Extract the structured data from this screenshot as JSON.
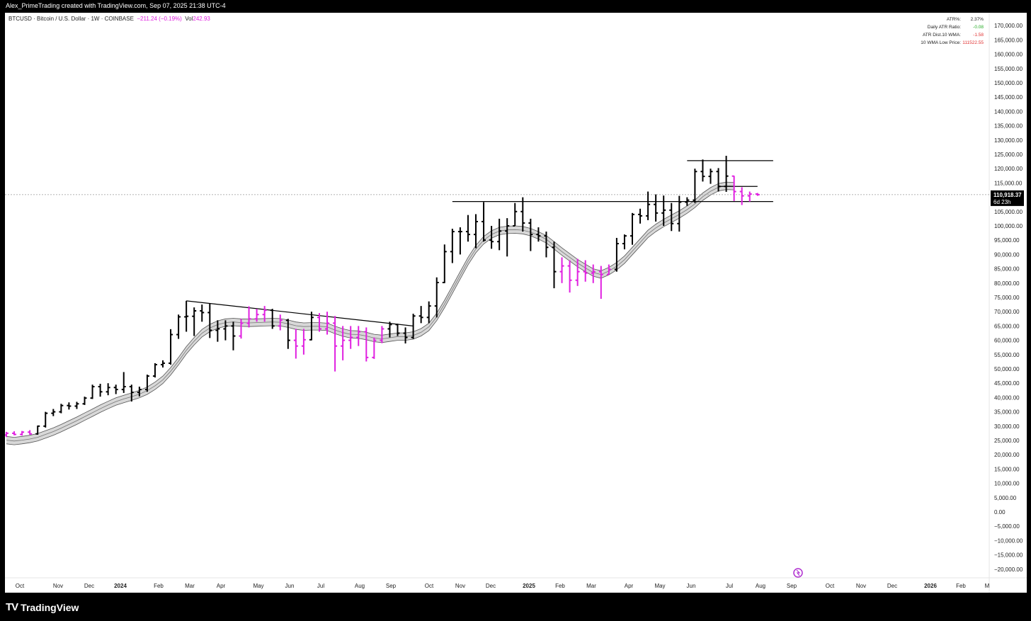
{
  "header": {
    "caption": "Alex_PrimeTrading created with TradingView.com, Sep 07, 2025 21:38 UTC-4"
  },
  "legend": {
    "symbol": "BTCUSD · Bitcoin / U.S. Dollar · 1W · COINBASE",
    "change": "−211.24 (−0.19%)",
    "volume_label": "Vol",
    "volume_value": "242.93"
  },
  "stats_table": [
    {
      "label": "ATR%:",
      "value": "2.37%",
      "color": "#222222"
    },
    {
      "label": "Daily ATR Ratio:",
      "value": "-0.08",
      "color": "#22aa22"
    },
    {
      "label": "ATR Dist.10 WMA:",
      "value": "-1.58",
      "color": "#e03030"
    },
    {
      "label": "10 WMA Low Price:",
      "value": "111522.55",
      "color": "#e03030"
    }
  ],
  "price_tag": {
    "price": "110,918.37",
    "countdown": "6d 23h"
  },
  "footer": {
    "brand": "TradingView",
    "logo_text": "TV"
  },
  "colors": {
    "up_bar": "#000000",
    "down_bar": "#e020e0",
    "band_fill": "#d8d8d8",
    "band_edge": "#555555",
    "ma_line": "#e060e0"
  },
  "chart_data": {
    "type": "ohlc_bar",
    "symbol": "BTCUSD",
    "timeframe": "1W",
    "y_axis": {
      "min": -20000,
      "max": 170000,
      "step": 5000,
      "tick_labels": [
        "170,000.00",
        "165,000.00",
        "160,000.00",
        "155,000.00",
        "150,000.00",
        "145,000.00",
        "140,000.00",
        "135,000.00",
        "130,000.00",
        "125,000.00",
        "120,000.00",
        "115,000.00",
        "110,000.00",
        "105,000.00",
        "100,000.00",
        "95,000.00",
        "90,000.00",
        "85,000.00",
        "80,000.00",
        "75,000.00",
        "70,000.00",
        "65,000.00",
        "60,000.00",
        "55,000.00",
        "50,000.00",
        "45,000.00",
        "40,000.00",
        "35,000.00",
        "30,000.00",
        "25,000.00",
        "20,000.00",
        "15,000.00",
        "10,000.00",
        "5,000.00",
        "0.00",
        "−5,000.00",
        "−10,000.00",
        "−15,000.00",
        "−20,000.00"
      ]
    },
    "x_axis": {
      "tick_labels": [
        "Oct",
        "Nov",
        "Dec",
        "2024",
        "Feb",
        "Mar",
        "Apr",
        "May",
        "Jun",
        "Jul",
        "Aug",
        "Sep",
        "Oct",
        "Nov",
        "Dec",
        "2025",
        "Feb",
        "Mar",
        "Apr",
        "May",
        "Jun",
        "Jul",
        "Aug",
        "Sep",
        "Oct",
        "Nov",
        "Dec",
        "2026",
        "Feb",
        "M"
      ],
      "bold_labels": [
        "2024",
        "2025",
        "2026"
      ]
    },
    "bars": [
      [
        26900,
        28000,
        26200,
        27500,
        0
      ],
      [
        27500,
        28200,
        26800,
        27100,
        0
      ],
      [
        27100,
        28300,
        26700,
        27900,
        0
      ],
      [
        27900,
        28600,
        27000,
        27300,
        0
      ],
      [
        27300,
        30200,
        27000,
        30000,
        1
      ],
      [
        30000,
        35000,
        29500,
        34500,
        1
      ],
      [
        34500,
        36000,
        33500,
        35000,
        1
      ],
      [
        35000,
        37800,
        34500,
        37200,
        1
      ],
      [
        37200,
        38300,
        35800,
        37000,
        1
      ],
      [
        37000,
        38500,
        36000,
        37800,
        1
      ],
      [
        37800,
        40300,
        37400,
        39800,
        1
      ],
      [
        39800,
        44500,
        39500,
        43800,
        1
      ],
      [
        43800,
        44800,
        40300,
        42000,
        1
      ],
      [
        42000,
        45000,
        40800,
        43500,
        1
      ],
      [
        43500,
        44500,
        41200,
        42800,
        1
      ],
      [
        42800,
        48900,
        41600,
        43800,
        1
      ],
      [
        43800,
        44500,
        38600,
        41800,
        1
      ],
      [
        41800,
        43800,
        40400,
        42800,
        1
      ],
      [
        42800,
        48000,
        42000,
        47500,
        1
      ],
      [
        47500,
        52000,
        47000,
        51500,
        1
      ],
      [
        51500,
        53000,
        50500,
        52000,
        1
      ],
      [
        52000,
        63900,
        51500,
        62000,
        1
      ],
      [
        62000,
        69000,
        60500,
        68200,
        1
      ],
      [
        68200,
        73800,
        63000,
        68400,
        1
      ],
      [
        68400,
        71500,
        61500,
        70300,
        1
      ],
      [
        70300,
        72500,
        66500,
        69700,
        1
      ],
      [
        69700,
        72800,
        60800,
        63500,
        1
      ],
      [
        63500,
        67000,
        59500,
        64000,
        1
      ],
      [
        64000,
        67000,
        60000,
        65000,
        1
      ],
      [
        65000,
        66500,
        56500,
        61500,
        1
      ],
      [
        61500,
        67500,
        60600,
        66000,
        0
      ],
      [
        66000,
        71900,
        64500,
        67500,
        0
      ],
      [
        67500,
        71000,
        66500,
        69000,
        0
      ],
      [
        69000,
        72000,
        66500,
        70500,
        0
      ],
      [
        70500,
        71000,
        64000,
        65000,
        1
      ],
      [
        65000,
        69000,
        63500,
        67000,
        0
      ],
      [
        67000,
        67500,
        57000,
        60000,
        1
      ],
      [
        60000,
        64000,
        53600,
        58000,
        0
      ],
      [
        58000,
        64000,
        55000,
        60200,
        0
      ],
      [
        60200,
        70000,
        60000,
        68000,
        1
      ],
      [
        68000,
        69500,
        63000,
        64000,
        0
      ],
      [
        64000,
        70000,
        62000,
        66000,
        0
      ],
      [
        66000,
        68500,
        49100,
        58000,
        0
      ],
      [
        58000,
        65000,
        53000,
        60000,
        0
      ],
      [
        60000,
        65000,
        57000,
        61000,
        0
      ],
      [
        61000,
        65000,
        58000,
        63000,
        0
      ],
      [
        63000,
        64500,
        52600,
        54000,
        0
      ],
      [
        54000,
        61000,
        53500,
        60000,
        0
      ],
      [
        60000,
        65000,
        59000,
        64000,
        0
      ],
      [
        64000,
        66500,
        61000,
        65500,
        1
      ],
      [
        65500,
        65800,
        61500,
        62500,
        1
      ],
      [
        62500,
        64500,
        58900,
        61000,
        1
      ],
      [
        61000,
        69300,
        60500,
        68500,
        1
      ],
      [
        68500,
        72000,
        66000,
        68000,
        1
      ],
      [
        68000,
        73600,
        66000,
        72000,
        1
      ],
      [
        72000,
        82000,
        68000,
        80200,
        1
      ],
      [
        80200,
        93500,
        80000,
        91000,
        1
      ],
      [
        91000,
        99000,
        87000,
        98000,
        1
      ],
      [
        98000,
        99500,
        90000,
        98000,
        1
      ],
      [
        98000,
        103800,
        94500,
        97000,
        1
      ],
      [
        97000,
        104100,
        92200,
        101500,
        1
      ],
      [
        101500,
        108300,
        94500,
        95000,
        1
      ],
      [
        95000,
        100000,
        92000,
        94500,
        1
      ],
      [
        94500,
        102500,
        91500,
        98200,
        1
      ],
      [
        98200,
        102700,
        89300,
        100000,
        1
      ],
      [
        100000,
        108000,
        100000,
        105000,
        1
      ],
      [
        105000,
        110000,
        98000,
        101000,
        1
      ],
      [
        101000,
        102500,
        91200,
        97000,
        1
      ],
      [
        97000,
        99500,
        94500,
        96500,
        1
      ],
      [
        96500,
        98000,
        89000,
        92500,
        1
      ],
      [
        92500,
        94500,
        78200,
        84000,
        1
      ],
      [
        84000,
        89000,
        80000,
        86000,
        0
      ],
      [
        86000,
        88000,
        76700,
        81000,
        0
      ],
      [
        81000,
        88500,
        79000,
        84000,
        0
      ],
      [
        84000,
        88000,
        80500,
        83500,
        0
      ],
      [
        83500,
        86500,
        80000,
        84000,
        0
      ],
      [
        84000,
        86000,
        74500,
        83000,
        0
      ],
      [
        83000,
        86500,
        83000,
        84800,
        0
      ],
      [
        84800,
        95800,
        84000,
        93800,
        1
      ],
      [
        93800,
        97000,
        91800,
        96500,
        1
      ],
      [
        96500,
        104500,
        93400,
        104000,
        1
      ],
      [
        104000,
        106000,
        100800,
        103500,
        1
      ],
      [
        103500,
        112000,
        102000,
        107500,
        1
      ],
      [
        107500,
        111000,
        101500,
        104500,
        1
      ],
      [
        104500,
        110600,
        100000,
        105500,
        1
      ],
      [
        105500,
        108000,
        98200,
        100800,
        1
      ],
      [
        100800,
        110500,
        98000,
        108300,
        1
      ],
      [
        108300,
        110000,
        107000,
        109000,
        1
      ],
      [
        109000,
        120000,
        108000,
        119000,
        1
      ],
      [
        119000,
        123200,
        115500,
        117300,
        1
      ],
      [
        117300,
        120000,
        114700,
        119000,
        1
      ],
      [
        119000,
        120200,
        112000,
        113800,
        1
      ],
      [
        113800,
        124500,
        111900,
        117400,
        1
      ],
      [
        117400,
        117500,
        108700,
        112000,
        0
      ],
      [
        112000,
        113500,
        107300,
        110500,
        0
      ],
      [
        110500,
        112000,
        108500,
        111130,
        0
      ],
      [
        111130,
        111500,
        110500,
        110918,
        0
      ]
    ],
    "ma_band_upper": [
      26400,
      26100,
      26400,
      26800,
      27400,
      28400,
      29400,
      30600,
      31900,
      33200,
      34600,
      36000,
      37400,
      38700,
      39900,
      40800,
      41600,
      42500,
      43700,
      45400,
      47500,
      50500,
      54000,
      57800,
      61000,
      63800,
      65600,
      66800,
      67500,
      67700,
      67500,
      67400,
      67500,
      67600,
      67700,
      67600,
      67100,
      66400,
      66100,
      66200,
      66200,
      66000,
      64900,
      64000,
      63400,
      63300,
      62800,
      62100,
      61800,
      62200,
      62600,
      62600,
      63000,
      64100,
      66000,
      69500,
      74000,
      79000,
      84000,
      89000,
      93200,
      96300,
      98300,
      99500,
      99900,
      100000,
      99800,
      99100,
      98000,
      96600,
      94500,
      92300,
      90300,
      88300,
      86600,
      85000,
      84300,
      85500,
      87200,
      89500,
      92500,
      95500,
      98500,
      100600,
      102300,
      103800,
      105300,
      107000,
      109000,
      111500,
      113400,
      114800,
      115300,
      115200
    ],
    "ma_band_lower": [
      23800,
      23500,
      23800,
      24200,
      24800,
      25800,
      26800,
      28000,
      29300,
      30600,
      32000,
      33400,
      34800,
      36100,
      37300,
      38200,
      39000,
      39900,
      41100,
      42800,
      44900,
      47900,
      51400,
      55200,
      58400,
      61200,
      63000,
      64200,
      64900,
      65100,
      64900,
      64800,
      64900,
      65000,
      65100,
      65000,
      64500,
      63800,
      63500,
      63600,
      63600,
      63400,
      62300,
      61400,
      60800,
      60700,
      60200,
      59500,
      59200,
      59600,
      60000,
      60000,
      60400,
      61500,
      63400,
      66900,
      71400,
      76400,
      81400,
      86400,
      90600,
      93700,
      95700,
      96900,
      97300,
      97400,
      97200,
      96500,
      95400,
      94000,
      91900,
      89700,
      87700,
      85700,
      84000,
      82400,
      81700,
      82900,
      84600,
      86900,
      89900,
      92900,
      95900,
      98000,
      99700,
      101200,
      102700,
      104400,
      106400,
      108900,
      110800,
      112200,
      112700,
      112600
    ],
    "trendlines": [
      {
        "from_bar": 23,
        "to_bar": 52,
        "from_price": 73800,
        "to_price": 65000,
        "kind": "descending_resistance"
      },
      {
        "from_bar": 57,
        "to_bar": 98,
        "price": 108500,
        "kind": "horizontal"
      },
      {
        "from_bar": 87,
        "to_bar": 98,
        "price": 122800,
        "kind": "horizontal"
      },
      {
        "from_bar": 91,
        "to_bar": 96,
        "price": 113800,
        "kind": "horizontal"
      }
    ],
    "last_price": 110918.37
  }
}
